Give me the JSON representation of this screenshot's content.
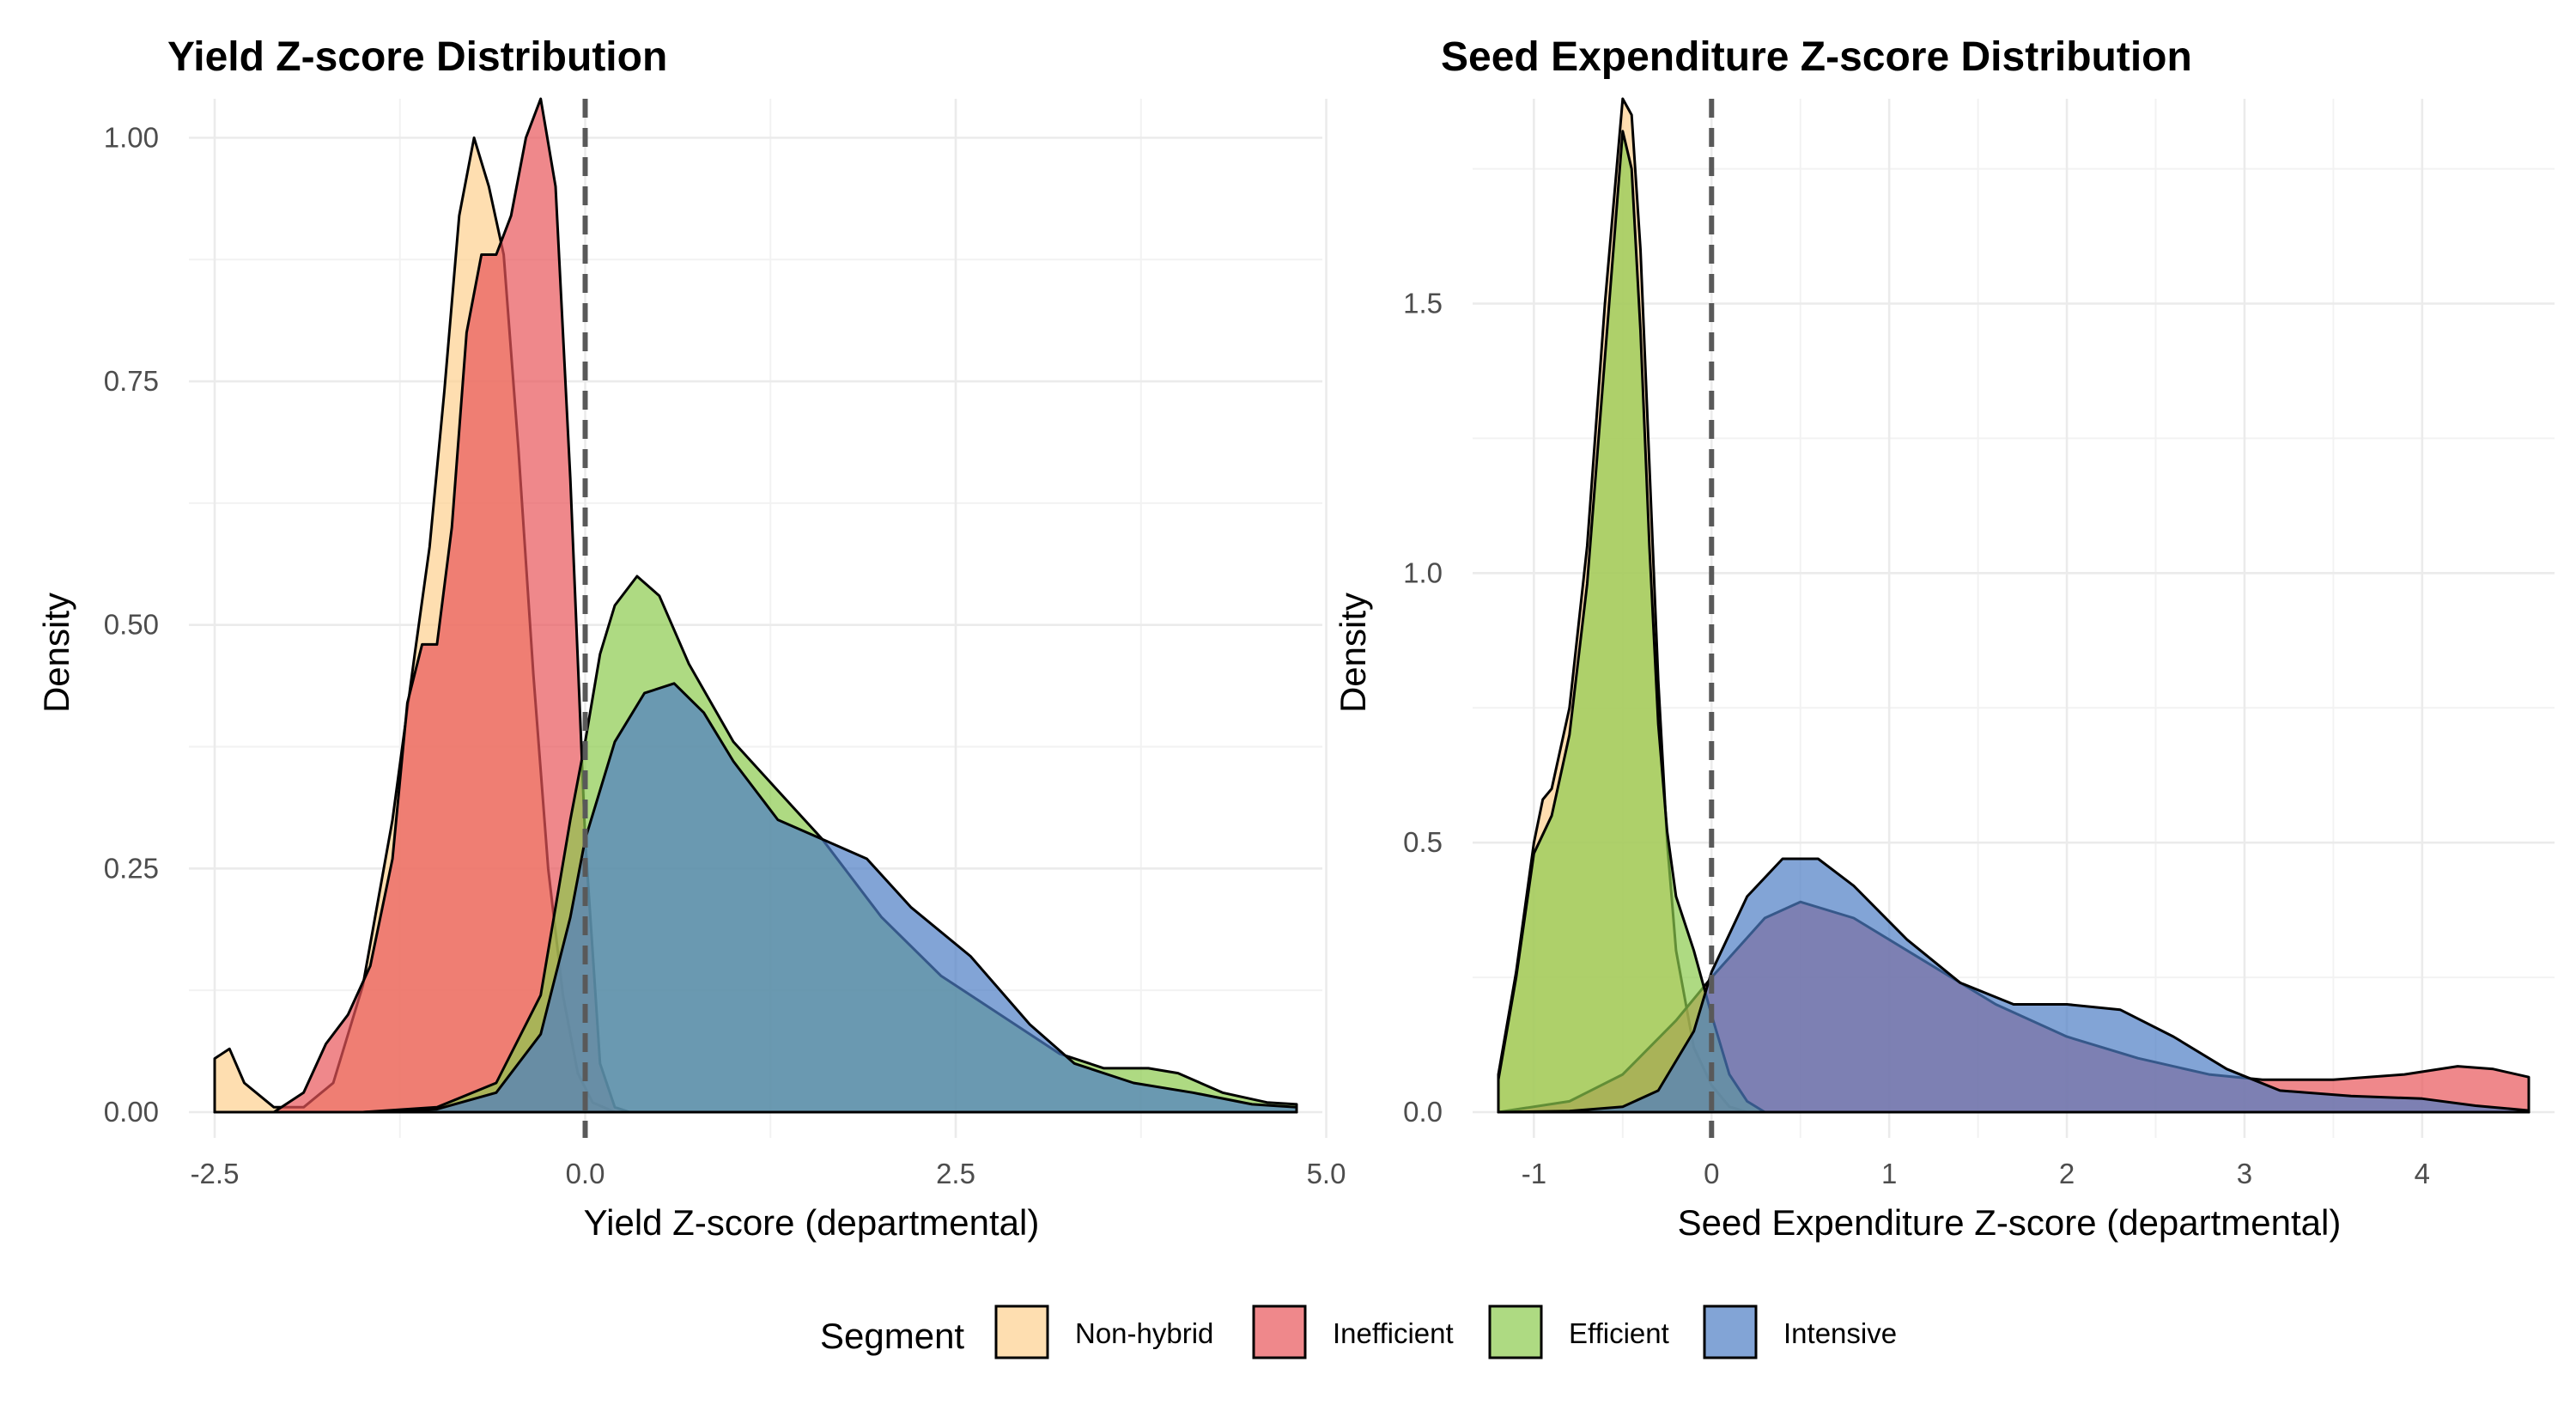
{
  "legend": {
    "title": "Segment",
    "items": [
      {
        "label": "Non-hybrid",
        "color": "#FDD08E"
      },
      {
        "label": "Inefficient",
        "color": "#E8555A"
      },
      {
        "label": "Efficient",
        "color": "#8CCB4D"
      },
      {
        "label": "Intensive",
        "color": "#4D7DC4"
      }
    ]
  },
  "chart_data": [
    {
      "type": "area",
      "title": "Yield Z-score Distribution",
      "xlabel": "Yield Z-score (departmental)",
      "ylabel": "Density",
      "xlim": [
        -2.5,
        4.8
      ],
      "ylim": [
        0,
        1.04
      ],
      "xticks": [
        -2.5,
        0.0,
        2.5,
        5.0
      ],
      "xtick_labels": [
        "-2.5",
        "0.0",
        "2.5",
        "5.0"
      ],
      "yticks": [
        0,
        0.25,
        0.5,
        0.75,
        1.0
      ],
      "ytick_labels": [
        "0.00",
        "0.25",
        "0.50",
        "0.75",
        "1.00"
      ],
      "reference_line_x": 0,
      "grid": true,
      "series": [
        {
          "name": "Non-hybrid",
          "color": "#FDD08E",
          "points": [
            [
              -2.5,
              0.055
            ],
            [
              -2.4,
              0.065
            ],
            [
              -2.3,
              0.03
            ],
            [
              -2.1,
              0.005
            ],
            [
              -1.9,
              0.005
            ],
            [
              -1.7,
              0.03
            ],
            [
              -1.5,
              0.13
            ],
            [
              -1.3,
              0.3
            ],
            [
              -1.15,
              0.47
            ],
            [
              -1.05,
              0.58
            ],
            [
              -0.95,
              0.74
            ],
            [
              -0.85,
              0.92
            ],
            [
              -0.75,
              1.0
            ],
            [
              -0.65,
              0.95
            ],
            [
              -0.55,
              0.88
            ],
            [
              -0.45,
              0.68
            ],
            [
              -0.35,
              0.45
            ],
            [
              -0.25,
              0.25
            ],
            [
              -0.15,
              0.12
            ],
            [
              -0.05,
              0.04
            ],
            [
              0.05,
              0.01
            ],
            [
              0.2,
              0.0
            ],
            [
              4.8,
              0.0
            ]
          ]
        },
        {
          "name": "Inefficient",
          "color": "#E8555A",
          "points": [
            [
              -2.5,
              0.0
            ],
            [
              -2.1,
              0.0
            ],
            [
              -1.9,
              0.02
            ],
            [
              -1.75,
              0.07
            ],
            [
              -1.6,
              0.1
            ],
            [
              -1.45,
              0.15
            ],
            [
              -1.3,
              0.26
            ],
            [
              -1.2,
              0.42
            ],
            [
              -1.1,
              0.48
            ],
            [
              -1.0,
              0.48
            ],
            [
              -0.9,
              0.6
            ],
            [
              -0.8,
              0.8
            ],
            [
              -0.7,
              0.88
            ],
            [
              -0.6,
              0.88
            ],
            [
              -0.5,
              0.92
            ],
            [
              -0.4,
              1.0
            ],
            [
              -0.3,
              1.04
            ],
            [
              -0.2,
              0.95
            ],
            [
              -0.1,
              0.65
            ],
            [
              0.0,
              0.28
            ],
            [
              0.1,
              0.05
            ],
            [
              0.2,
              0.005
            ],
            [
              0.3,
              0.0
            ],
            [
              4.8,
              0.0
            ]
          ]
        },
        {
          "name": "Efficient",
          "color": "#8CCB4D",
          "points": [
            [
              -2.5,
              0.0
            ],
            [
              -1.5,
              0.0
            ],
            [
              -1.0,
              0.005
            ],
            [
              -0.6,
              0.03
            ],
            [
              -0.3,
              0.12
            ],
            [
              -0.1,
              0.3
            ],
            [
              0.0,
              0.38
            ],
            [
              0.1,
              0.47
            ],
            [
              0.2,
              0.52
            ],
            [
              0.35,
              0.55
            ],
            [
              0.5,
              0.53
            ],
            [
              0.7,
              0.46
            ],
            [
              1.0,
              0.38
            ],
            [
              1.3,
              0.33
            ],
            [
              1.6,
              0.28
            ],
            [
              2.0,
              0.2
            ],
            [
              2.4,
              0.14
            ],
            [
              2.8,
              0.1
            ],
            [
              3.2,
              0.06
            ],
            [
              3.5,
              0.045
            ],
            [
              3.8,
              0.045
            ],
            [
              4.0,
              0.04
            ],
            [
              4.3,
              0.02
            ],
            [
              4.6,
              0.01
            ],
            [
              4.8,
              0.008
            ]
          ]
        },
        {
          "name": "Intensive",
          "color": "#4D7DC4",
          "points": [
            [
              -2.5,
              0.0
            ],
            [
              -1.5,
              0.0
            ],
            [
              -1.0,
              0.003
            ],
            [
              -0.6,
              0.02
            ],
            [
              -0.3,
              0.08
            ],
            [
              -0.1,
              0.2
            ],
            [
              0.0,
              0.28
            ],
            [
              0.2,
              0.38
            ],
            [
              0.4,
              0.43
            ],
            [
              0.6,
              0.44
            ],
            [
              0.8,
              0.41
            ],
            [
              1.0,
              0.36
            ],
            [
              1.3,
              0.3
            ],
            [
              1.6,
              0.28
            ],
            [
              1.9,
              0.26
            ],
            [
              2.2,
              0.21
            ],
            [
              2.6,
              0.16
            ],
            [
              3.0,
              0.09
            ],
            [
              3.3,
              0.05
            ],
            [
              3.7,
              0.03
            ],
            [
              4.1,
              0.02
            ],
            [
              4.5,
              0.008
            ],
            [
              4.8,
              0.005
            ]
          ]
        }
      ]
    },
    {
      "type": "area",
      "title": "Seed Expenditure Z-score Distribution",
      "xlabel": "Seed Expenditure Z-score (departmental)",
      "ylabel": "Density",
      "xlim": [
        -1.2,
        4.6
      ],
      "ylim": [
        0,
        1.88
      ],
      "xticks": [
        -1,
        0,
        1,
        2,
        3,
        4
      ],
      "xtick_labels": [
        "-1",
        "0",
        "1",
        "2",
        "3",
        "4"
      ],
      "yticks": [
        0,
        0.5,
        1.0,
        1.5
      ],
      "ytick_labels": [
        "0.0",
        "0.5",
        "1.0",
        "1.5"
      ],
      "reference_line_x": 0,
      "grid": true,
      "series": [
        {
          "name": "Non-hybrid",
          "color": "#FDD08E",
          "points": [
            [
              -1.2,
              0.07
            ],
            [
              -1.1,
              0.26
            ],
            [
              -1.0,
              0.5
            ],
            [
              -0.95,
              0.58
            ],
            [
              -0.9,
              0.6
            ],
            [
              -0.8,
              0.75
            ],
            [
              -0.7,
              1.05
            ],
            [
              -0.6,
              1.5
            ],
            [
              -0.5,
              1.88
            ],
            [
              -0.45,
              1.85
            ],
            [
              -0.4,
              1.6
            ],
            [
              -0.35,
              1.2
            ],
            [
              -0.3,
              0.8
            ],
            [
              -0.25,
              0.5
            ],
            [
              -0.2,
              0.3
            ],
            [
              -0.1,
              0.12
            ],
            [
              0.0,
              0.05
            ],
            [
              0.1,
              0.01
            ],
            [
              0.2,
              0.0
            ],
            [
              4.6,
              0.0
            ]
          ]
        },
        {
          "name": "Inefficient",
          "color": "#E8555A",
          "points": [
            [
              -1.2,
              0.0
            ],
            [
              -0.8,
              0.02
            ],
            [
              -0.5,
              0.07
            ],
            [
              -0.2,
              0.17
            ],
            [
              0.0,
              0.25
            ],
            [
              0.3,
              0.36
            ],
            [
              0.5,
              0.39
            ],
            [
              0.8,
              0.36
            ],
            [
              1.2,
              0.28
            ],
            [
              1.6,
              0.2
            ],
            [
              2.0,
              0.14
            ],
            [
              2.4,
              0.1
            ],
            [
              2.8,
              0.07
            ],
            [
              3.1,
              0.06
            ],
            [
              3.5,
              0.06
            ],
            [
              3.9,
              0.07
            ],
            [
              4.2,
              0.085
            ],
            [
              4.4,
              0.08
            ],
            [
              4.6,
              0.065
            ]
          ]
        },
        {
          "name": "Efficient",
          "color": "#8CCB4D",
          "points": [
            [
              -1.2,
              0.06
            ],
            [
              -1.1,
              0.25
            ],
            [
              -1.0,
              0.48
            ],
            [
              -0.9,
              0.55
            ],
            [
              -0.8,
              0.7
            ],
            [
              -0.7,
              0.98
            ],
            [
              -0.6,
              1.4
            ],
            [
              -0.5,
              1.82
            ],
            [
              -0.45,
              1.75
            ],
            [
              -0.4,
              1.45
            ],
            [
              -0.35,
              1.05
            ],
            [
              -0.3,
              0.72
            ],
            [
              -0.25,
              0.52
            ],
            [
              -0.2,
              0.4
            ],
            [
              -0.1,
              0.3
            ],
            [
              0.0,
              0.18
            ],
            [
              0.1,
              0.07
            ],
            [
              0.2,
              0.02
            ],
            [
              0.3,
              0.0
            ],
            [
              4.6,
              0.0
            ]
          ]
        },
        {
          "name": "Intensive",
          "color": "#4D7DC4",
          "points": [
            [
              -1.2,
              0.0
            ],
            [
              -0.8,
              0.002
            ],
            [
              -0.5,
              0.01
            ],
            [
              -0.3,
              0.04
            ],
            [
              -0.1,
              0.15
            ],
            [
              0.0,
              0.26
            ],
            [
              0.2,
              0.4
            ],
            [
              0.4,
              0.47
            ],
            [
              0.6,
              0.47
            ],
            [
              0.8,
              0.42
            ],
            [
              1.1,
              0.32
            ],
            [
              1.4,
              0.24
            ],
            [
              1.7,
              0.2
            ],
            [
              2.0,
              0.2
            ],
            [
              2.3,
              0.19
            ],
            [
              2.6,
              0.14
            ],
            [
              2.9,
              0.08
            ],
            [
              3.2,
              0.04
            ],
            [
              3.6,
              0.03
            ],
            [
              4.0,
              0.025
            ],
            [
              4.3,
              0.012
            ],
            [
              4.6,
              0.003
            ]
          ]
        }
      ]
    }
  ]
}
